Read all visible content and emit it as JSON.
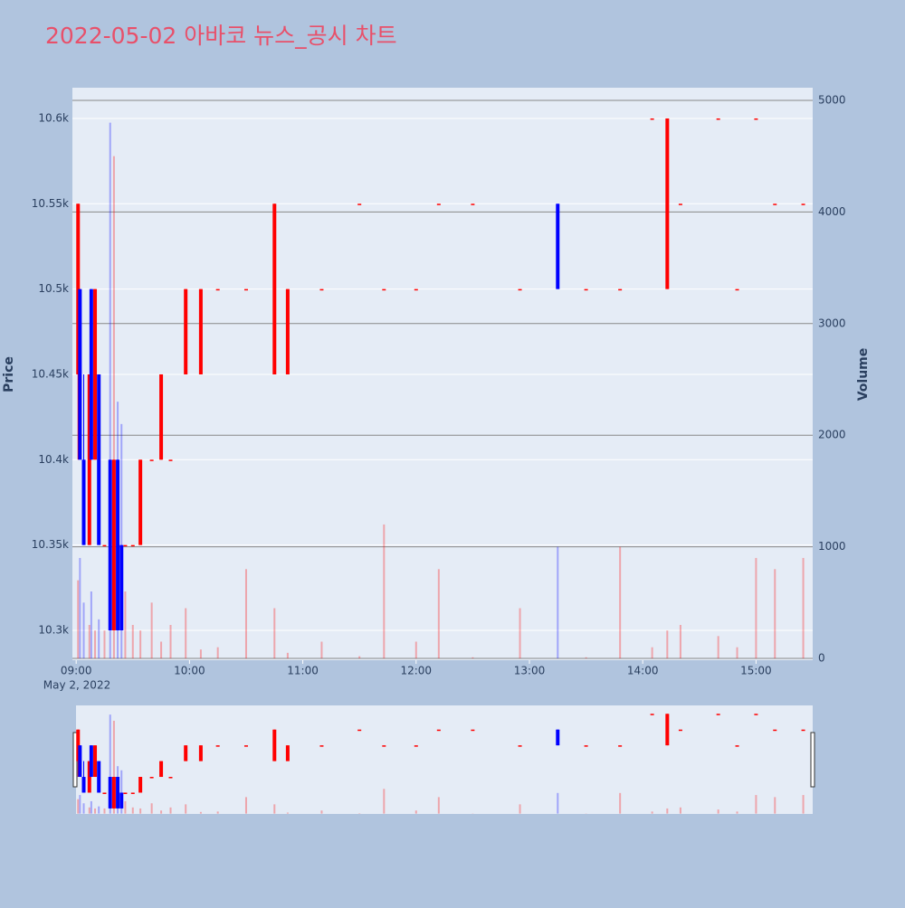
{
  "chart_data": {
    "type": "candlestick",
    "title": "2022-05-02 아바코 뉴스_공시 차트",
    "y_label": "Price",
    "y2_label": "Volume",
    "x_date_label": "May 2, 2022",
    "up_color": "#ff0000",
    "down_color": "#0000ff",
    "x": [
      "09:01",
      "09:02",
      "09:04",
      "09:07",
      "09:08",
      "09:10",
      "09:12",
      "09:15",
      "09:18",
      "09:20",
      "09:22",
      "09:24",
      "09:26",
      "09:30",
      "09:34",
      "09:40",
      "09:45",
      "09:50",
      "09:58",
      "10:06",
      "10:15",
      "10:30",
      "10:45",
      "10:52",
      "11:10",
      "11:30",
      "11:43",
      "12:00",
      "12:12",
      "12:30",
      "12:55",
      "13:15",
      "13:30",
      "13:48",
      "14:05",
      "14:13",
      "14:20",
      "14:40",
      "14:50",
      "15:00",
      "15:10",
      "15:25"
    ],
    "open": [
      10450,
      10500,
      10400,
      10350,
      10500,
      10400,
      10450,
      10350,
      10400,
      10300,
      10400,
      10350,
      10350,
      10350,
      10350,
      10400,
      10400,
      10400,
      10450,
      10450,
      10500,
      10500,
      10450,
      10450,
      10500,
      10550,
      10500,
      10500,
      10550,
      10550,
      10500,
      10550,
      10500,
      10500,
      10600,
      10500,
      10550,
      10600,
      10500,
      10600,
      10550,
      10550
    ],
    "high": [
      10550,
      10500,
      10450,
      10450,
      10500,
      10500,
      10450,
      10350,
      10400,
      10400,
      10400,
      10350,
      10350,
      10350,
      10400,
      10400,
      10450,
      10400,
      10500,
      10500,
      10500,
      10500,
      10550,
      10500,
      10500,
      10550,
      10500,
      10500,
      10550,
      10550,
      10500,
      10550,
      10500,
      10500,
      10600,
      10600,
      10550,
      10600,
      10500,
      10600,
      10550,
      10550
    ],
    "low": [
      10400,
      10400,
      10350,
      10350,
      10400,
      10400,
      10350,
      10350,
      10300,
      10300,
      10300,
      10300,
      10350,
      10350,
      10350,
      10400,
      10400,
      10400,
      10450,
      10450,
      10500,
      10500,
      10450,
      10450,
      10500,
      10550,
      10500,
      10500,
      10550,
      10550,
      10500,
      10500,
      10500,
      10500,
      10600,
      10500,
      10550,
      10600,
      10500,
      10600,
      10550,
      10550
    ],
    "close": [
      10550,
      10400,
      10350,
      10450,
      10400,
      10500,
      10350,
      10350,
      10300,
      10400,
      10300,
      10300,
      10350,
      10350,
      10400,
      10400,
      10450,
      10400,
      10500,
      10500,
      10500,
      10500,
      10550,
      10500,
      10500,
      10550,
      10500,
      10500,
      10550,
      10550,
      10500,
      10500,
      10500,
      10500,
      10600,
      10600,
      10550,
      10600,
      10500,
      10600,
      10550,
      10550
    ],
    "volume": [
      700,
      900,
      500,
      300,
      600,
      250,
      350,
      250,
      4800,
      4500,
      2300,
      2100,
      600,
      300,
      250,
      500,
      150,
      300,
      450,
      80,
      100,
      800,
      450,
      50,
      150,
      20,
      1200,
      150,
      800,
      10,
      450,
      1000,
      10,
      1000,
      100,
      250,
      300,
      200,
      100,
      900,
      800,
      900
    ],
    "xlim": [
      "08:58",
      "15:30"
    ],
    "xticks": [
      "09:00",
      "10:00",
      "11:00",
      "12:00",
      "13:00",
      "14:00",
      "15:00"
    ],
    "ylim": [
      10282.5,
      10618
    ],
    "yticks": [
      {
        "value": 10300,
        "label": "10.3k"
      },
      {
        "value": 10350,
        "label": "10.35k"
      },
      {
        "value": 10400,
        "label": "10.4k"
      },
      {
        "value": 10450,
        "label": "10.45k"
      },
      {
        "value": 10500,
        "label": "10.5k"
      },
      {
        "value": 10550,
        "label": "10.55k"
      },
      {
        "value": 10600,
        "label": "10.6k"
      }
    ],
    "y2lim": [
      -16,
      5113
    ],
    "y2ticks": [
      0,
      1000,
      2000,
      3000,
      4000,
      5000
    ]
  }
}
